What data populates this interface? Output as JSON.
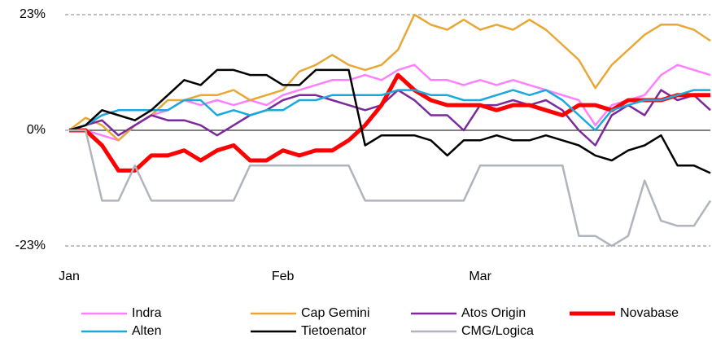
{
  "chart_data": {
    "type": "line",
    "categories": [
      "Jan",
      null,
      null,
      null,
      null,
      null,
      null,
      null,
      null,
      null,
      null,
      null,
      null,
      "Feb",
      null,
      null,
      null,
      null,
      null,
      null,
      null,
      null,
      null,
      null,
      null,
      "Mar",
      null,
      null,
      null,
      null,
      null,
      null,
      null,
      null,
      null,
      null,
      null,
      null,
      null,
      null
    ],
    "ylim": [
      -23,
      23
    ],
    "yticks": [
      {
        "value": 23,
        "label": "23%"
      },
      {
        "value": 0,
        "label": "0%"
      },
      {
        "value": -23,
        "label": "-23%"
      }
    ],
    "grid": true,
    "legend": "bottom",
    "series": [
      {
        "name": "Indra",
        "color": "#ff80ff",
        "values": [
          0,
          0,
          -1,
          -2,
          1,
          3,
          4,
          6,
          5,
          6,
          5,
          6,
          5,
          7,
          8,
          9,
          10,
          10,
          11,
          10,
          12,
          13,
          10,
          10,
          9,
          10,
          9,
          10,
          9,
          8,
          7,
          6,
          1,
          5,
          6,
          7,
          11,
          13,
          12,
          11
        ]
      },
      {
        "name": "Cap Gemini",
        "color": "#e8a838",
        "values": [
          0,
          2.5,
          1,
          -2,
          1,
          3,
          6,
          6,
          7,
          7,
          8,
          6,
          7,
          8,
          11.7,
          13,
          15,
          13,
          12,
          13,
          16,
          23,
          21,
          20,
          22,
          20,
          21,
          20,
          22,
          20,
          17,
          14,
          8.4,
          13,
          16,
          19,
          21,
          21,
          20,
          17.8
        ]
      },
      {
        "name": "Atos Origin",
        "color": "#7b2a9c",
        "values": [
          0,
          1,
          2,
          -1,
          1,
          3,
          2,
          2,
          1,
          -1,
          1,
          3,
          4,
          6,
          7,
          7,
          6,
          5,
          4,
          5,
          8,
          6,
          3,
          3,
          0,
          5,
          5,
          6,
          5,
          6,
          4,
          0,
          -3,
          3,
          5,
          3,
          8,
          6,
          7,
          4
        ]
      },
      {
        "name": "Novabase",
        "color": "#ff0000",
        "values": [
          0,
          0,
          -3,
          -8,
          -8,
          -5,
          -5,
          -4,
          -6,
          -4,
          -3,
          -6,
          -6,
          -4,
          -5,
          -4,
          -4,
          -2,
          1,
          5,
          11,
          8,
          6,
          5,
          5,
          5,
          4,
          5,
          5,
          4,
          3,
          5,
          5,
          4,
          6,
          6,
          6,
          7,
          7,
          7
        ]
      },
      {
        "name": "Alten",
        "color": "#1ba8dc",
        "values": [
          0,
          1,
          3,
          4,
          4,
          4,
          4,
          6,
          6,
          3,
          4,
          3,
          4,
          4,
          6,
          6,
          7,
          7,
          7,
          7,
          8,
          8,
          7,
          7,
          6,
          6,
          7,
          8,
          7,
          8,
          6,
          3,
          0,
          4,
          5,
          6,
          6,
          7,
          8,
          8
        ]
      },
      {
        "name": "Tietoenator",
        "color": "#000000",
        "values": [
          0,
          1,
          4,
          3,
          2,
          4,
          7,
          10,
          9,
          12,
          12,
          11,
          11,
          9,
          9,
          12,
          12,
          12,
          -3,
          -1,
          -1,
          -1,
          -2,
          -5,
          -2,
          -2,
          -1,
          -2,
          -2,
          -1,
          -2,
          -3,
          -5,
          -6,
          -4,
          -3,
          -1,
          -7,
          -7,
          -8.5
        ]
      },
      {
        "name": "CMG/Logica",
        "color": "#b0b4bc",
        "values": [
          0,
          0,
          -14,
          -14,
          -7,
          -14,
          -14,
          -14,
          -14,
          -14,
          -14,
          -7,
          -7,
          -7,
          -7,
          -7,
          -7,
          -7,
          -14,
          -14,
          -14,
          -14,
          -14,
          -14,
          -14,
          -7,
          -7,
          -7,
          -7,
          -7,
          -7,
          -21,
          -21,
          -23,
          -21,
          -10,
          -18,
          -19,
          -19,
          -14
        ]
      }
    ]
  }
}
